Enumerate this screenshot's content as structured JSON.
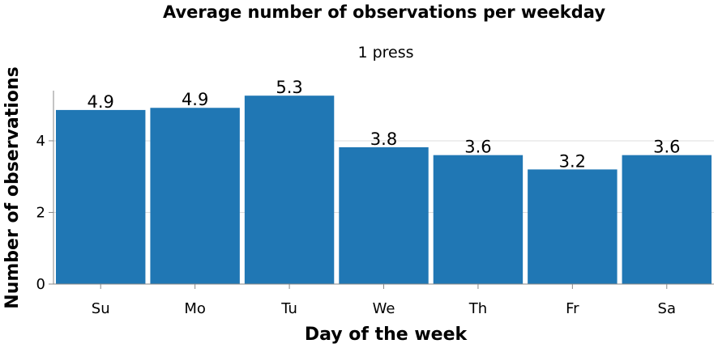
{
  "chart_data": {
    "type": "bar",
    "title": "Average number of observations per weekday",
    "subtitle": "1 press",
    "xlabel": "Day of the week",
    "ylabel": "Number of observations",
    "categories": [
      "Su",
      "Mo",
      "Tu",
      "We",
      "Th",
      "Fr",
      "Sa"
    ],
    "values": [
      4.86,
      4.92,
      5.26,
      3.82,
      3.6,
      3.2,
      3.6
    ],
    "value_labels": [
      "4.9",
      "4.9",
      "5.3",
      "3.8",
      "3.6",
      "3.2",
      "3.6"
    ],
    "ylim": [
      0,
      5.4
    ],
    "yticks": [
      0,
      2,
      4
    ],
    "ytick_labels": [
      "0",
      "2",
      "4"
    ],
    "grid": true,
    "bar_color": "#2077b4"
  }
}
